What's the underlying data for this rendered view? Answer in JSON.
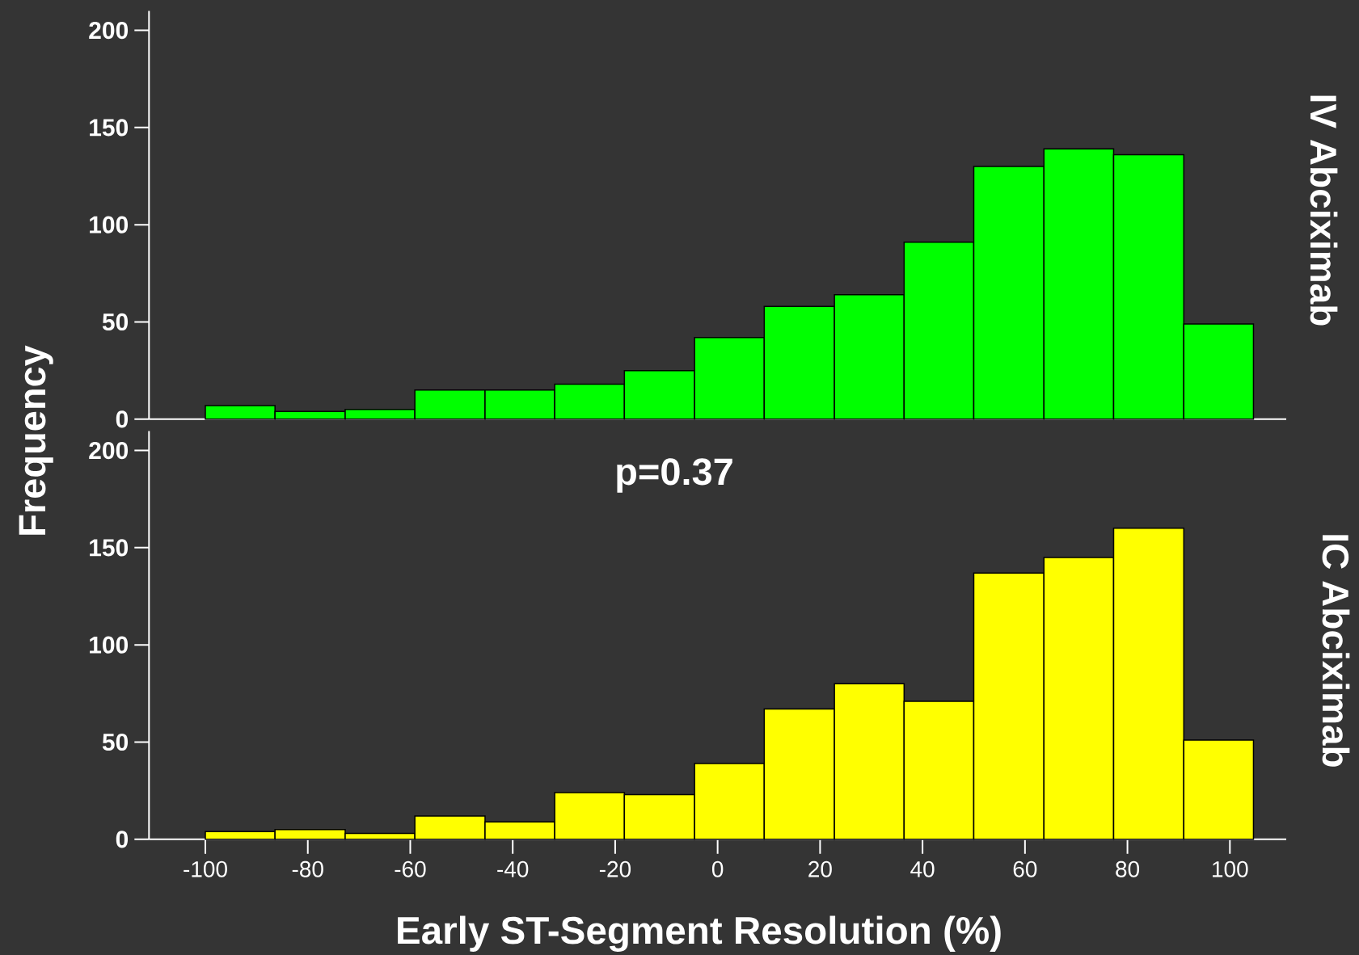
{
  "chart_data": [
    {
      "type": "histogram",
      "y2label": "IV Abciximab",
      "ylabel": "Frequency",
      "bins": [
        -100,
        -86.4,
        -72.7,
        -59.1,
        -45.4,
        -31.8,
        -18.2,
        -4.5,
        9.1,
        22.8,
        36.4,
        50,
        63.7,
        77.3,
        91,
        104.6
      ],
      "values": [
        7,
        4,
        5,
        15,
        15,
        18,
        25,
        42,
        58,
        64,
        91,
        130,
        139,
        136,
        49
      ],
      "color": "#00ff00",
      "xlim": [
        -111,
        111
      ],
      "ylim": [
        0,
        210
      ],
      "yticks": [
        0,
        50,
        100,
        150,
        200
      ],
      "tick_labels": "y"
    },
    {
      "type": "histogram",
      "y2label": "IC Abciximab",
      "xlabel": "Early ST-Segment Resolution (%)",
      "annotations": [
        "p=0.37"
      ],
      "bins": [
        -100,
        -86.4,
        -72.7,
        -59.1,
        -45.4,
        -31.8,
        -18.2,
        -4.5,
        9.1,
        22.8,
        36.4,
        50,
        63.7,
        77.3,
        91,
        104.6
      ],
      "values": [
        4,
        5,
        3,
        12,
        9,
        24,
        23,
        39,
        67,
        80,
        71,
        137,
        145,
        160,
        51
      ],
      "color": "#ffff00",
      "xlim": [
        -111,
        111
      ],
      "ylim": [
        0,
        210
      ],
      "xticks": [
        -100,
        -80,
        -60,
        -40,
        -20,
        0,
        20,
        40,
        60,
        80,
        100
      ],
      "yticks": [
        0,
        50,
        100,
        150,
        200
      ]
    }
  ]
}
